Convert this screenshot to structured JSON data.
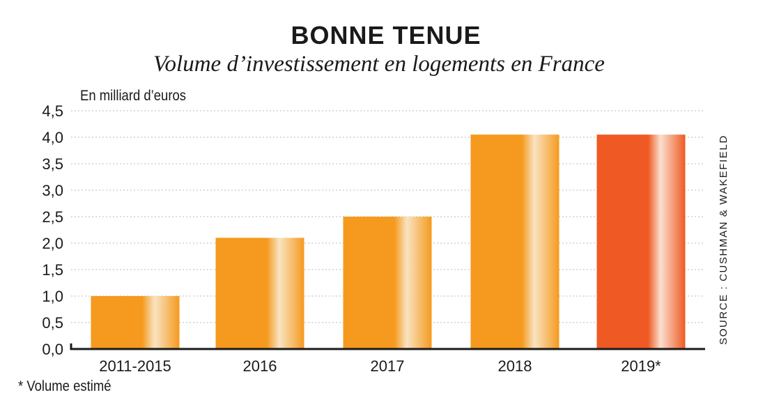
{
  "chart_data": {
    "type": "bar",
    "title": "BONNE TENUE",
    "subtitle": "Volume d’investissement en logements en France",
    "ylabel": "En milliard d’euros",
    "categories": [
      "2011-2015",
      "2016",
      "2017",
      "2018",
      "2019*"
    ],
    "values": [
      1.0,
      2.1,
      2.5,
      4.05,
      4.05
    ],
    "ylim": [
      0,
      4.5
    ],
    "yticks": [
      "0,0",
      "0,5",
      "1,0",
      "1,5",
      "2,0",
      "2,5",
      "3,0",
      "3,5",
      "4,0",
      "4,5"
    ],
    "grid": true,
    "footnote": "* Volume estimé",
    "source": "SOURCE : CUSHMAN & WAKEFIELD",
    "colors": {
      "bar": "#f59a1e",
      "bar_highlight": "#f9e3c2",
      "bar_last": "#ef5a24",
      "bar_last_highlight": "#fbe0cf",
      "grid": "#b8b8b8",
      "axis": "#1a1a1a"
    }
  }
}
